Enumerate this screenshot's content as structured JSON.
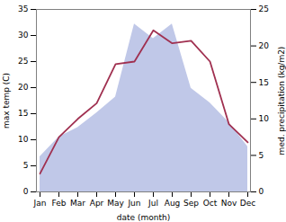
{
  "chart_data": {
    "type": "line",
    "categories": [
      "Jan",
      "Feb",
      "Mar",
      "Apr",
      "May",
      "Jun",
      "Jul",
      "Aug",
      "Sep",
      "Oct",
      "Nov",
      "Dec"
    ],
    "xlabel": "date (month)",
    "ylabel": "max temp (C)",
    "y2label": "med. precipitation (kg/m2)",
    "ylim": [
      0,
      35
    ],
    "yticks": [
      0,
      5,
      10,
      15,
      20,
      25,
      30,
      35
    ],
    "y2lim": [
      0,
      25
    ],
    "y2ticks": [
      0,
      5,
      10,
      15,
      20,
      25
    ],
    "grid": false,
    "series": [
      {
        "type": "area",
        "axis": "y2",
        "color": "#c0c8e8",
        "values": [
          4.8,
          7.5,
          8.8,
          10.8,
          13.0,
          23.0,
          21.0,
          23.0,
          14.2,
          12.2,
          9.5,
          6.2
        ]
      },
      {
        "type": "line",
        "color": "#a03050",
        "values": [
          3.5,
          10.5,
          14.0,
          17.0,
          24.5,
          25.0,
          31.0,
          28.5,
          29.0,
          25.0,
          13.0,
          9.5
        ]
      }
    ]
  }
}
